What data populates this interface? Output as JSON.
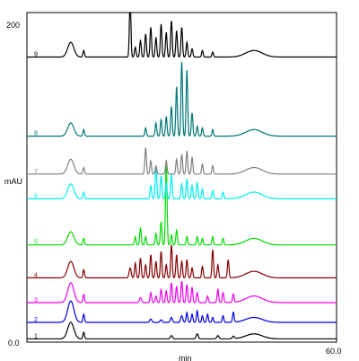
{
  "chart_data": {
    "type": "line",
    "xlabel": "min",
    "ylabel": "mAU",
    "xlim": [
      0,
      60
    ],
    "ylim": [
      0,
      200
    ],
    "x_ticks": [
      "60.0"
    ],
    "y_ticks": [
      "0.0",
      "200"
    ],
    "series": [
      {
        "name": "1",
        "color": "#000000",
        "baseline": 2,
        "peaks": [
          [
            8.5,
            10,
            0.6
          ],
          [
            11,
            4,
            0.15
          ],
          [
            28,
            2,
            0.2
          ],
          [
            33,
            3,
            0.2
          ],
          [
            37,
            2,
            0.2
          ],
          [
            40,
            1.5,
            0.2
          ],
          [
            44,
            3,
            1.6
          ]
        ]
      },
      {
        "name": "2",
        "color": "#0000dd",
        "baseline": 12,
        "peaks": [
          [
            8.5,
            13,
            0.6
          ],
          [
            11,
            5,
            0.15
          ],
          [
            24,
            2,
            0.2
          ],
          [
            26,
            1.5,
            0.2
          ],
          [
            28,
            3,
            0.2
          ],
          [
            30,
            4,
            0.2
          ],
          [
            31,
            6,
            0.15
          ],
          [
            32,
            5,
            0.15
          ],
          [
            33,
            7,
            0.15
          ],
          [
            34,
            4,
            0.15
          ],
          [
            35,
            5,
            0.15
          ],
          [
            36,
            3,
            0.15
          ],
          [
            38,
            4,
            0.15
          ],
          [
            40,
            6,
            0.15
          ],
          [
            44,
            3,
            1.6
          ]
        ]
      },
      {
        "name": "3",
        "color": "#ee00ee",
        "baseline": 24,
        "peaks": [
          [
            8.5,
            12,
            0.6
          ],
          [
            11,
            5,
            0.15
          ],
          [
            22,
            3,
            0.2
          ],
          [
            24,
            6,
            0.15
          ],
          [
            25,
            4,
            0.15
          ],
          [
            26,
            8,
            0.15
          ],
          [
            27,
            7,
            0.15
          ],
          [
            28,
            12,
            0.15
          ],
          [
            29,
            10,
            0.15
          ],
          [
            30,
            13,
            0.15
          ],
          [
            31,
            11,
            0.15
          ],
          [
            32,
            9,
            0.15
          ],
          [
            33,
            6,
            0.15
          ],
          [
            35,
            4,
            0.15
          ],
          [
            37,
            8,
            0.15
          ],
          [
            38,
            6,
            0.15
          ],
          [
            40,
            5,
            0.15
          ],
          [
            44,
            4,
            1.6
          ]
        ]
      },
      {
        "name": "4",
        "color": "#880000",
        "baseline": 39,
        "peaks": [
          [
            8.5,
            10,
            0.6
          ],
          [
            11,
            5,
            0.15
          ],
          [
            20,
            6,
            0.2
          ],
          [
            21,
            9,
            0.15
          ],
          [
            22,
            12,
            0.15
          ],
          [
            23,
            8,
            0.15
          ],
          [
            24,
            14,
            0.15
          ],
          [
            25,
            10,
            0.15
          ],
          [
            26,
            16,
            0.15
          ],
          [
            27,
            8,
            0.15
          ],
          [
            28,
            20,
            0.15
          ],
          [
            29,
            14,
            0.15
          ],
          [
            30,
            10,
            0.15
          ],
          [
            31,
            11,
            0.15
          ],
          [
            32,
            6,
            0.15
          ],
          [
            34,
            7,
            0.15
          ],
          [
            36,
            17,
            0.15
          ],
          [
            37,
            8,
            0.15
          ],
          [
            39,
            11,
            0.15
          ],
          [
            44,
            4,
            1.6
          ]
        ]
      },
      {
        "name": "5",
        "color": "#00dd00",
        "baseline": 59,
        "peaks": [
          [
            8.5,
            8,
            0.6
          ],
          [
            11,
            4,
            0.15
          ],
          [
            21,
            5,
            0.15
          ],
          [
            22,
            10,
            0.15
          ],
          [
            23,
            5,
            0.15
          ],
          [
            25,
            7,
            0.15
          ],
          [
            26,
            14,
            0.15
          ],
          [
            27,
            48,
            0.15
          ],
          [
            28,
            6,
            0.15
          ],
          [
            29,
            9,
            0.15
          ],
          [
            31,
            5,
            0.15
          ],
          [
            33,
            5,
            0.15
          ],
          [
            34,
            4,
            0.15
          ],
          [
            36,
            5,
            0.15
          ],
          [
            38,
            4,
            0.15
          ],
          [
            44,
            4,
            1.6
          ]
        ]
      },
      {
        "name": "6",
        "color": "#00eeee",
        "baseline": 87,
        "peaks": [
          [
            8.5,
            9,
            0.6
          ],
          [
            11,
            4,
            0.15
          ],
          [
            24,
            8,
            0.15
          ],
          [
            25,
            20,
            0.15
          ],
          [
            26,
            14,
            0.15
          ],
          [
            27,
            10,
            0.15
          ],
          [
            28,
            15,
            0.15
          ],
          [
            30,
            9,
            0.15
          ],
          [
            31,
            12,
            0.15
          ],
          [
            32,
            8,
            0.15
          ],
          [
            33,
            10,
            0.15
          ],
          [
            34,
            6,
            0.15
          ],
          [
            36,
            5,
            0.15
          ],
          [
            38,
            4,
            0.15
          ],
          [
            44,
            4,
            1.6
          ]
        ]
      },
      {
        "name": "7",
        "color": "#808080",
        "baseline": 102,
        "peaks": [
          [
            8.5,
            9,
            0.6
          ],
          [
            11,
            4,
            0.15
          ],
          [
            23,
            16,
            0.15
          ],
          [
            24,
            8,
            0.15
          ],
          [
            25,
            5,
            0.15
          ],
          [
            27,
            8,
            0.15
          ],
          [
            29,
            9,
            0.15
          ],
          [
            30,
            12,
            0.15
          ],
          [
            31,
            14,
            0.15
          ],
          [
            32,
            10,
            0.15
          ],
          [
            34,
            6,
            0.15
          ],
          [
            36,
            5,
            0.15
          ],
          [
            44,
            4,
            1.6
          ]
        ]
      },
      {
        "name": "8",
        "color": "#007777",
        "baseline": 125,
        "peaks": [
          [
            8.5,
            8,
            0.6
          ],
          [
            11,
            4,
            0.15
          ],
          [
            23,
            5,
            0.15
          ],
          [
            25,
            8,
            0.15
          ],
          [
            26,
            10,
            0.15
          ],
          [
            27,
            12,
            0.15
          ],
          [
            28,
            18,
            0.15
          ],
          [
            29,
            30,
            0.15
          ],
          [
            30,
            45,
            0.15
          ],
          [
            31,
            40,
            0.15
          ],
          [
            32,
            14,
            0.15
          ],
          [
            33,
            6,
            0.15
          ],
          [
            34,
            5,
            0.15
          ],
          [
            36,
            4,
            0.15
          ],
          [
            44,
            4,
            1.6
          ]
        ]
      },
      {
        "name": "9",
        "color": "#000000",
        "baseline": 173,
        "peaks": [
          [
            8.5,
            9,
            0.6
          ],
          [
            11,
            4,
            0.15
          ],
          [
            20,
            34,
            0.15
          ],
          [
            21,
            6,
            0.15
          ],
          [
            22,
            10,
            0.15
          ],
          [
            23,
            14,
            0.15
          ],
          [
            24,
            18,
            0.15
          ],
          [
            25,
            12,
            0.15
          ],
          [
            26,
            20,
            0.15
          ],
          [
            27,
            15,
            0.15
          ],
          [
            28,
            22,
            0.15
          ],
          [
            29,
            16,
            0.15
          ],
          [
            30,
            18,
            0.15
          ],
          [
            31,
            9,
            0.15
          ],
          [
            32,
            5,
            0.15
          ],
          [
            34,
            4,
            0.15
          ],
          [
            36,
            3,
            0.15
          ],
          [
            44,
            4,
            1.6
          ]
        ]
      }
    ],
    "grid": false,
    "legend": "none"
  }
}
